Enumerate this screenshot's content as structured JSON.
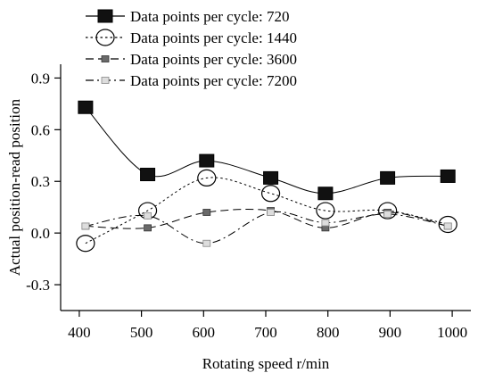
{
  "chart_data": {
    "type": "line",
    "title": "",
    "xlabel": "Rotating speed r/min",
    "ylabel": "Actual position-read position",
    "xlim": [
      370,
      1030
    ],
    "ylim": [
      -0.45,
      0.98
    ],
    "x_ticks": [
      "400",
      "500",
      "600",
      "700",
      "800",
      "900",
      "1000"
    ],
    "y_ticks": [
      "0.9",
      "0.6",
      "0.3",
      "0.0",
      "-0.3"
    ],
    "grid": false,
    "legend_position": "top-left",
    "series": [
      {
        "name": "Data points per cycle: 720",
        "marker": "filled-square-large",
        "line_style": "solid",
        "color": "#000000",
        "x": [
          410,
          510,
          605,
          708,
          796,
          896,
          993
        ],
        "y": [
          0.73,
          0.34,
          0.42,
          0.32,
          0.23,
          0.32,
          0.33
        ]
      },
      {
        "name": "Data points per cycle: 1440",
        "marker": "open-circle",
        "line_style": "dotted",
        "color": "#000000",
        "x": [
          410,
          510,
          605,
          708,
          796,
          896,
          993
        ],
        "y": [
          -0.06,
          0.13,
          0.32,
          0.23,
          0.13,
          0.13,
          0.05
        ]
      },
      {
        "name": "Data points per cycle: 3600",
        "marker": "gray-square",
        "line_style": "dashed",
        "color": "#666666",
        "x": [
          410,
          510,
          605,
          708,
          796,
          896,
          993
        ],
        "y": [
          0.04,
          0.03,
          0.12,
          0.13,
          0.03,
          0.12,
          0.04
        ]
      },
      {
        "name": "Data points per cycle: 7200",
        "marker": "light-square",
        "line_style": "dash-dot",
        "color": "#bbbbbb",
        "x": [
          410,
          510,
          605,
          708,
          796,
          896,
          993
        ],
        "y": [
          0.04,
          0.1,
          -0.06,
          0.12,
          0.06,
          0.11,
          0.04
        ]
      }
    ]
  }
}
